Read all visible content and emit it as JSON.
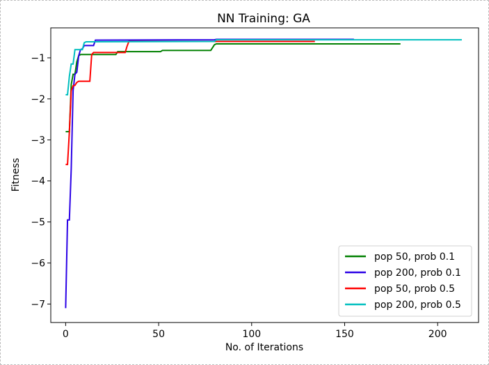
{
  "chart_data": {
    "type": "line",
    "title": "NN Training: GA",
    "xlabel": "No. of Iterations",
    "ylabel": "Fitness",
    "xlim": [
      -8,
      222
    ],
    "ylim": [
      -7.45,
      -0.27
    ],
    "xticks": [
      0,
      50,
      100,
      150,
      200
    ],
    "yticks": [
      -7,
      -6,
      -5,
      -4,
      -3,
      -2,
      -1
    ],
    "xtick_labels": [
      "0",
      "50",
      "100",
      "150",
      "200"
    ],
    "ytick_labels": [
      "−7",
      "−6",
      "−5",
      "−4",
      "−3",
      "−2",
      "−1"
    ],
    "grid": false,
    "legend_position": "lower-right",
    "series": [
      {
        "name": "pop 50, prob 0.1",
        "color": "#008000",
        "points": [
          [
            0,
            -2.8
          ],
          [
            1,
            -2.8
          ],
          [
            2,
            -2.8
          ],
          [
            3,
            -1.65
          ],
          [
            4,
            -1.4
          ],
          [
            5,
            -1.4
          ],
          [
            6,
            -1.1
          ],
          [
            7,
            -0.95
          ],
          [
            8,
            -0.92
          ],
          [
            27,
            -0.92
          ],
          [
            28,
            -0.85
          ],
          [
            51,
            -0.85
          ],
          [
            52,
            -0.82
          ],
          [
            78,
            -0.82
          ],
          [
            79,
            -0.75
          ],
          [
            80,
            -0.68
          ],
          [
            81,
            -0.66
          ],
          [
            180,
            -0.66
          ]
        ]
      },
      {
        "name": "pop 200, prob 0.1",
        "color": "#2a00e6",
        "points": [
          [
            0,
            -7.1
          ],
          [
            1,
            -4.95
          ],
          [
            2,
            -4.95
          ],
          [
            3,
            -3.7
          ],
          [
            4,
            -1.8
          ],
          [
            5,
            -1.4
          ],
          [
            6,
            -1.35
          ],
          [
            7,
            -0.95
          ],
          [
            8,
            -0.8
          ],
          [
            9,
            -0.78
          ],
          [
            10,
            -0.7
          ],
          [
            15,
            -0.7
          ],
          [
            16,
            -0.57
          ],
          [
            80,
            -0.56
          ],
          [
            81,
            -0.55
          ],
          [
            155,
            -0.55
          ]
        ]
      },
      {
        "name": "pop 50, prob 0.5",
        "color": "#ff0000",
        "points": [
          [
            0,
            -3.6
          ],
          [
            1,
            -3.6
          ],
          [
            2,
            -2.8
          ],
          [
            3,
            -1.8
          ],
          [
            4,
            -1.68
          ],
          [
            5,
            -1.67
          ],
          [
            6,
            -1.6
          ],
          [
            7,
            -1.57
          ],
          [
            13,
            -1.57
          ],
          [
            14,
            -0.92
          ],
          [
            15,
            -0.87
          ],
          [
            32,
            -0.87
          ],
          [
            33,
            -0.72
          ],
          [
            34,
            -0.6
          ],
          [
            134,
            -0.6
          ]
        ]
      },
      {
        "name": "pop 200, prob 0.5",
        "color": "#00bfbf",
        "points": [
          [
            0,
            -1.9
          ],
          [
            1,
            -1.9
          ],
          [
            2,
            -1.45
          ],
          [
            3,
            -1.15
          ],
          [
            4,
            -1.15
          ],
          [
            5,
            -0.8
          ],
          [
            9,
            -0.8
          ],
          [
            10,
            -0.63
          ],
          [
            11,
            -0.61
          ],
          [
            80,
            -0.6
          ],
          [
            81,
            -0.56
          ],
          [
            213,
            -0.56
          ]
        ]
      }
    ]
  }
}
